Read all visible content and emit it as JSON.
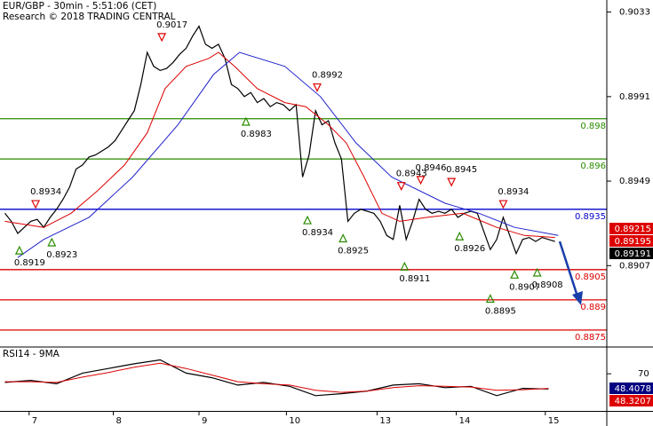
{
  "chart_data": [
    {
      "type": "line",
      "title": "EUR/GBP - 30min - 5:51:06 (CET)",
      "subtitle": "Research © 2018 TRADING CENTRAL",
      "x": [
        0,
        4,
        8,
        12,
        16,
        20,
        24,
        28,
        32,
        36,
        40,
        44,
        48,
        52,
        56,
        60,
        64,
        68,
        72,
        76,
        80,
        84,
        88,
        92,
        96,
        100,
        104,
        108,
        112,
        116,
        120,
        124,
        128,
        132,
        136,
        140,
        144,
        148,
        152,
        156,
        160,
        164,
        168,
        172,
        176,
        180,
        184,
        188,
        192,
        196,
        200,
        204,
        208,
        212,
        216,
        220,
        224,
        228,
        232,
        236,
        240,
        244,
        248,
        252,
        256,
        260,
        264,
        268,
        272,
        276,
        280,
        284,
        288,
        292,
        296,
        300,
        304,
        308,
        312,
        316,
        320,
        324,
        328,
        332,
        336,
        340
      ],
      "xlim": [
        -3,
        372
      ],
      "ylim": [
        0.8867,
        0.9039
      ],
      "yticks": [
        0.9033,
        0.8991,
        0.8949,
        0.8907
      ],
      "series": [
        {
          "color": "#000000",
          "values": [
            0.8933,
            0.8929,
            0.8923,
            0.8926,
            0.8929,
            0.893,
            0.8926,
            0.8931,
            0.8935,
            0.894,
            0.8946,
            0.8955,
            0.8957,
            0.8961,
            0.8962,
            0.8964,
            0.8966,
            0.8969,
            0.8974,
            0.8979,
            0.8984,
            0.8997,
            0.9013,
            0.9006,
            0.9004,
            0.9005,
            0.9008,
            0.9012,
            0.9015,
            0.9021,
            0.9026,
            0.9017,
            0.9015,
            0.9017,
            0.901,
            0.8997,
            0.8995,
            0.8991,
            0.8993,
            0.8988,
            0.899,
            0.8986,
            0.8988,
            0.8987,
            0.8984,
            0.8987,
            0.8951,
            0.8962,
            0.8984,
            0.8977,
            0.8979,
            0.8968,
            0.896,
            0.8929,
            0.8933,
            0.8935,
            0.8934,
            0.8933,
            0.8929,
            0.8922,
            0.892,
            0.8937,
            0.892,
            0.8929,
            0.894,
            0.8935,
            0.8933,
            0.8934,
            0.8933,
            0.8935,
            0.8931,
            0.8933,
            0.8934,
            0.8933,
            0.8924,
            0.8915,
            0.892,
            0.8931,
            0.8922,
            0.8913,
            0.892,
            0.8921,
            0.8919,
            0.8921,
            0.892,
            0.8919
          ]
        },
        {
          "color": "#dd0000",
          "x": [
            0,
            24,
            41,
            57,
            74,
            88,
            99,
            112,
            126,
            132,
            142,
            156,
            173,
            186,
            200,
            211,
            222,
            233,
            244,
            261,
            283,
            304,
            321,
            340
          ],
          "values": [
            0.8929,
            0.8926,
            0.8933,
            0.8944,
            0.8957,
            0.8973,
            0.8995,
            0.9006,
            0.901,
            0.9013,
            0.9006,
            0.8995,
            0.8988,
            0.8986,
            0.8977,
            0.8968,
            0.8951,
            0.8933,
            0.8929,
            0.8931,
            0.8933,
            0.8926,
            0.8922,
            0.8921
          ]
        },
        {
          "color": "#2222cc",
          "x": [
            8,
            24,
            52,
            79,
            107,
            129,
            145,
            173,
            195,
            217,
            239,
            272,
            293,
            315,
            342
          ],
          "values": [
            0.8911,
            0.892,
            0.8931,
            0.8951,
            0.8977,
            0.9002,
            0.9013,
            0.9006,
            0.8991,
            0.8968,
            0.8951,
            0.8938,
            0.8933,
            0.8926,
            0.8922
          ]
        }
      ],
      "levels": [
        {
          "value": 0.898,
          "color": "#2a8c00"
        },
        {
          "value": 0.896,
          "color": "#2a8c00"
        },
        {
          "value": 0.8935,
          "color": "#0000cc"
        },
        {
          "value": 0.8905,
          "color": "#dd0000"
        },
        {
          "value": 0.889,
          "color": "#dd0000"
        },
        {
          "value": 0.8875,
          "color": "#dd0000"
        }
      ],
      "annotations": [
        {
          "x": 9,
          "value": 0.8919,
          "kind": "low"
        },
        {
          "x": 19,
          "value": 0.8934,
          "kind": "high"
        },
        {
          "x": 29,
          "value": 0.8923,
          "kind": "low"
        },
        {
          "x": 97,
          "value": 0.9017,
          "kind": "high"
        },
        {
          "x": 149,
          "value": 0.8983,
          "kind": "low"
        },
        {
          "x": 187,
          "value": 0.8934,
          "kind": "low"
        },
        {
          "x": 193,
          "value": 0.8992,
          "kind": "high"
        },
        {
          "x": 209,
          "value": 0.8925,
          "kind": "low"
        },
        {
          "x": 245,
          "value": 0.8943,
          "kind": "high"
        },
        {
          "x": 247,
          "value": 0.8911,
          "kind": "low"
        },
        {
          "x": 257,
          "value": 0.8946,
          "kind": "high"
        },
        {
          "x": 276,
          "value": 0.8945,
          "kind": "high"
        },
        {
          "x": 281,
          "value": 0.8926,
          "kind": "low"
        },
        {
          "x": 300,
          "value": 0.8895,
          "kind": "low"
        },
        {
          "x": 308,
          "value": 0.8934,
          "kind": "high"
        },
        {
          "x": 315,
          "value": 0.8907,
          "kind": "low"
        },
        {
          "x": 329,
          "value": 0.8908,
          "kind": "low"
        }
      ],
      "price_tags": [
        {
          "value": 0.89215,
          "color": "#dd0000"
        },
        {
          "value": 0.89195,
          "color": "#dd0000"
        },
        {
          "value": 0.89191,
          "color": "#000000"
        }
      ]
    },
    {
      "type": "line",
      "title": "RSI14 - 9MA",
      "x": [
        0,
        16,
        32,
        48,
        64,
        80,
        96,
        112,
        128,
        144,
        160,
        176,
        192,
        208,
        224,
        240,
        256,
        272,
        288,
        304,
        320,
        336
      ],
      "xlim": [
        -3,
        372
      ],
      "xticks": [
        {
          "value": 15,
          "label": "7"
        },
        {
          "value": 67,
          "label": "8"
        },
        {
          "value": 120,
          "label": "9"
        },
        {
          "value": 174,
          "label": "10"
        },
        {
          "value": 230,
          "label": "13"
        },
        {
          "value": 279,
          "label": "14"
        },
        {
          "value": 334,
          "label": "15"
        }
      ],
      "ylim": [
        14,
        109
      ],
      "yticks": [
        70
      ],
      "series": [
        {
          "color": "#000000",
          "values": [
            57,
            60,
            55,
            71,
            78,
            85,
            91,
            71,
            64,
            53,
            57,
            51,
            37,
            40,
            44,
            53,
            55,
            49,
            51,
            37,
            48,
            47
          ]
        },
        {
          "color": "#dd0000",
          "values": [
            58,
            58,
            57,
            65,
            72,
            80,
            86,
            78,
            68,
            58,
            55,
            53,
            45,
            42,
            44,
            49,
            52,
            51,
            50,
            45,
            46,
            48
          ]
        }
      ],
      "price_tags": [
        {
          "value": 48.4078,
          "color": "#000080"
        },
        {
          "value": 48.3207,
          "color": "#dd0000"
        }
      ]
    }
  ]
}
